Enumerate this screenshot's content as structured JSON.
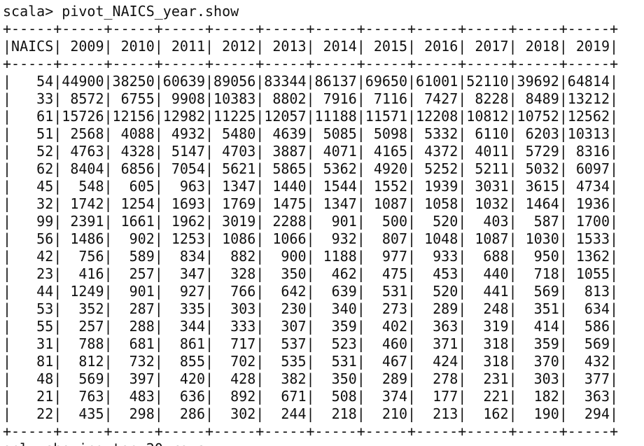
{
  "prompt": "scala>",
  "command": "pivot_NAICS_year.show",
  "table": {
    "header": [
      "NAICS",
      "2009",
      "2010",
      "2011",
      "2012",
      "2013",
      "2014",
      "2015",
      "2016",
      "2017",
      "2018",
      "2019"
    ],
    "rows": [
      [
        54,
        44900,
        38250,
        60639,
        89056,
        83344,
        86137,
        69650,
        61001,
        52110,
        39692,
        64814
      ],
      [
        33,
        8572,
        6755,
        9908,
        10383,
        8802,
        7916,
        7116,
        7427,
        8228,
        8489,
        13212
      ],
      [
        61,
        15726,
        12156,
        12982,
        11225,
        12057,
        11188,
        11571,
        12208,
        10812,
        10752,
        12562
      ],
      [
        51,
        2568,
        4088,
        4932,
        5480,
        4639,
        5085,
        5098,
        5332,
        6110,
        6203,
        10313
      ],
      [
        52,
        4763,
        4328,
        5147,
        4703,
        3887,
        4071,
        4165,
        4372,
        4011,
        5729,
        8316
      ],
      [
        62,
        8404,
        6856,
        7054,
        5621,
        5865,
        5362,
        4920,
        5252,
        5211,
        5032,
        6097
      ],
      [
        45,
        548,
        605,
        963,
        1347,
        1440,
        1544,
        1552,
        1939,
        3031,
        3615,
        4734
      ],
      [
        32,
        1742,
        1254,
        1693,
        1769,
        1475,
        1347,
        1087,
        1058,
        1032,
        1464,
        1936
      ],
      [
        99,
        2391,
        1661,
        1962,
        3019,
        2288,
        901,
        500,
        520,
        403,
        587,
        1700
      ],
      [
        56,
        1486,
        902,
        1253,
        1086,
        1066,
        932,
        807,
        1048,
        1087,
        1030,
        1533
      ],
      [
        42,
        756,
        589,
        834,
        882,
        900,
        1188,
        977,
        933,
        688,
        950,
        1362
      ],
      [
        23,
        416,
        257,
        347,
        328,
        350,
        462,
        475,
        453,
        440,
        718,
        1055
      ],
      [
        44,
        1249,
        901,
        927,
        766,
        642,
        639,
        531,
        520,
        441,
        569,
        813
      ],
      [
        53,
        352,
        287,
        335,
        303,
        230,
        340,
        273,
        289,
        248,
        351,
        634
      ],
      [
        55,
        257,
        288,
        344,
        333,
        307,
        359,
        402,
        363,
        319,
        414,
        586
      ],
      [
        31,
        788,
        681,
        861,
        717,
        537,
        523,
        460,
        371,
        318,
        359,
        569
      ],
      [
        81,
        812,
        732,
        855,
        702,
        535,
        531,
        467,
        424,
        318,
        370,
        432
      ],
      [
        48,
        569,
        397,
        420,
        428,
        382,
        350,
        289,
        278,
        231,
        303,
        377
      ],
      [
        21,
        763,
        483,
        636,
        892,
        671,
        508,
        374,
        177,
        221,
        182,
        363
      ],
      [
        22,
        435,
        298,
        286,
        302,
        244,
        218,
        210,
        213,
        162,
        190,
        294
      ]
    ]
  },
  "footer": "only showing top 20 rows"
}
